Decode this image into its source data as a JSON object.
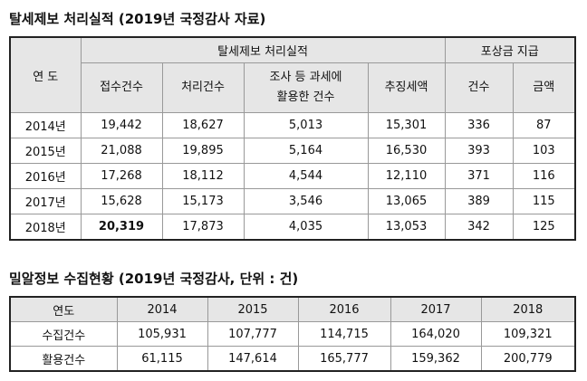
{
  "table1": {
    "title": "탈세제보 처리실적 (2019년 국정감사 자료)",
    "header": {
      "year": "연 도",
      "group1": "탈세제보 처리실적",
      "group2": "포상금 지급"
    },
    "subheaders": [
      [
        "접수건수"
      ],
      [
        "처리건수"
      ],
      [
        "조사 등 과세에",
        "활용한 건수"
      ],
      [
        "추징세액"
      ],
      [
        "건수"
      ],
      [
        "금액"
      ]
    ],
    "rows": [
      [
        "2014년",
        "19,442",
        "18,627",
        "5,013",
        "15,301",
        "336",
        "87"
      ],
      [
        "2015년",
        "21,088",
        "19,895",
        "5,164",
        "16,530",
        "393",
        "103"
      ],
      [
        "2016년",
        "17,268",
        "18,112",
        "4,544",
        "12,110",
        "371",
        "116"
      ],
      [
        "2017년",
        "15,628",
        "15,173",
        "3,546",
        "13,065",
        "389",
        "115"
      ],
      [
        "2018년",
        "20,319",
        "17,873",
        "4,035",
        "13,053",
        "342",
        "125"
      ]
    ]
  },
  "table2": {
    "title": "밀알정보 수집현황 (2019년 국정감사, 단위 : 건)",
    "header": [
      "연도",
      "2014",
      "2015",
      "2016",
      "2017",
      "2018"
    ],
    "rows": [
      [
        "수집건수",
        "105,931",
        "107,777",
        "114,715",
        "164,020",
        "109,321"
      ],
      [
        "활용건수",
        "61,115",
        "147,614",
        "165,777",
        "159,362",
        "200,779"
      ]
    ]
  }
}
